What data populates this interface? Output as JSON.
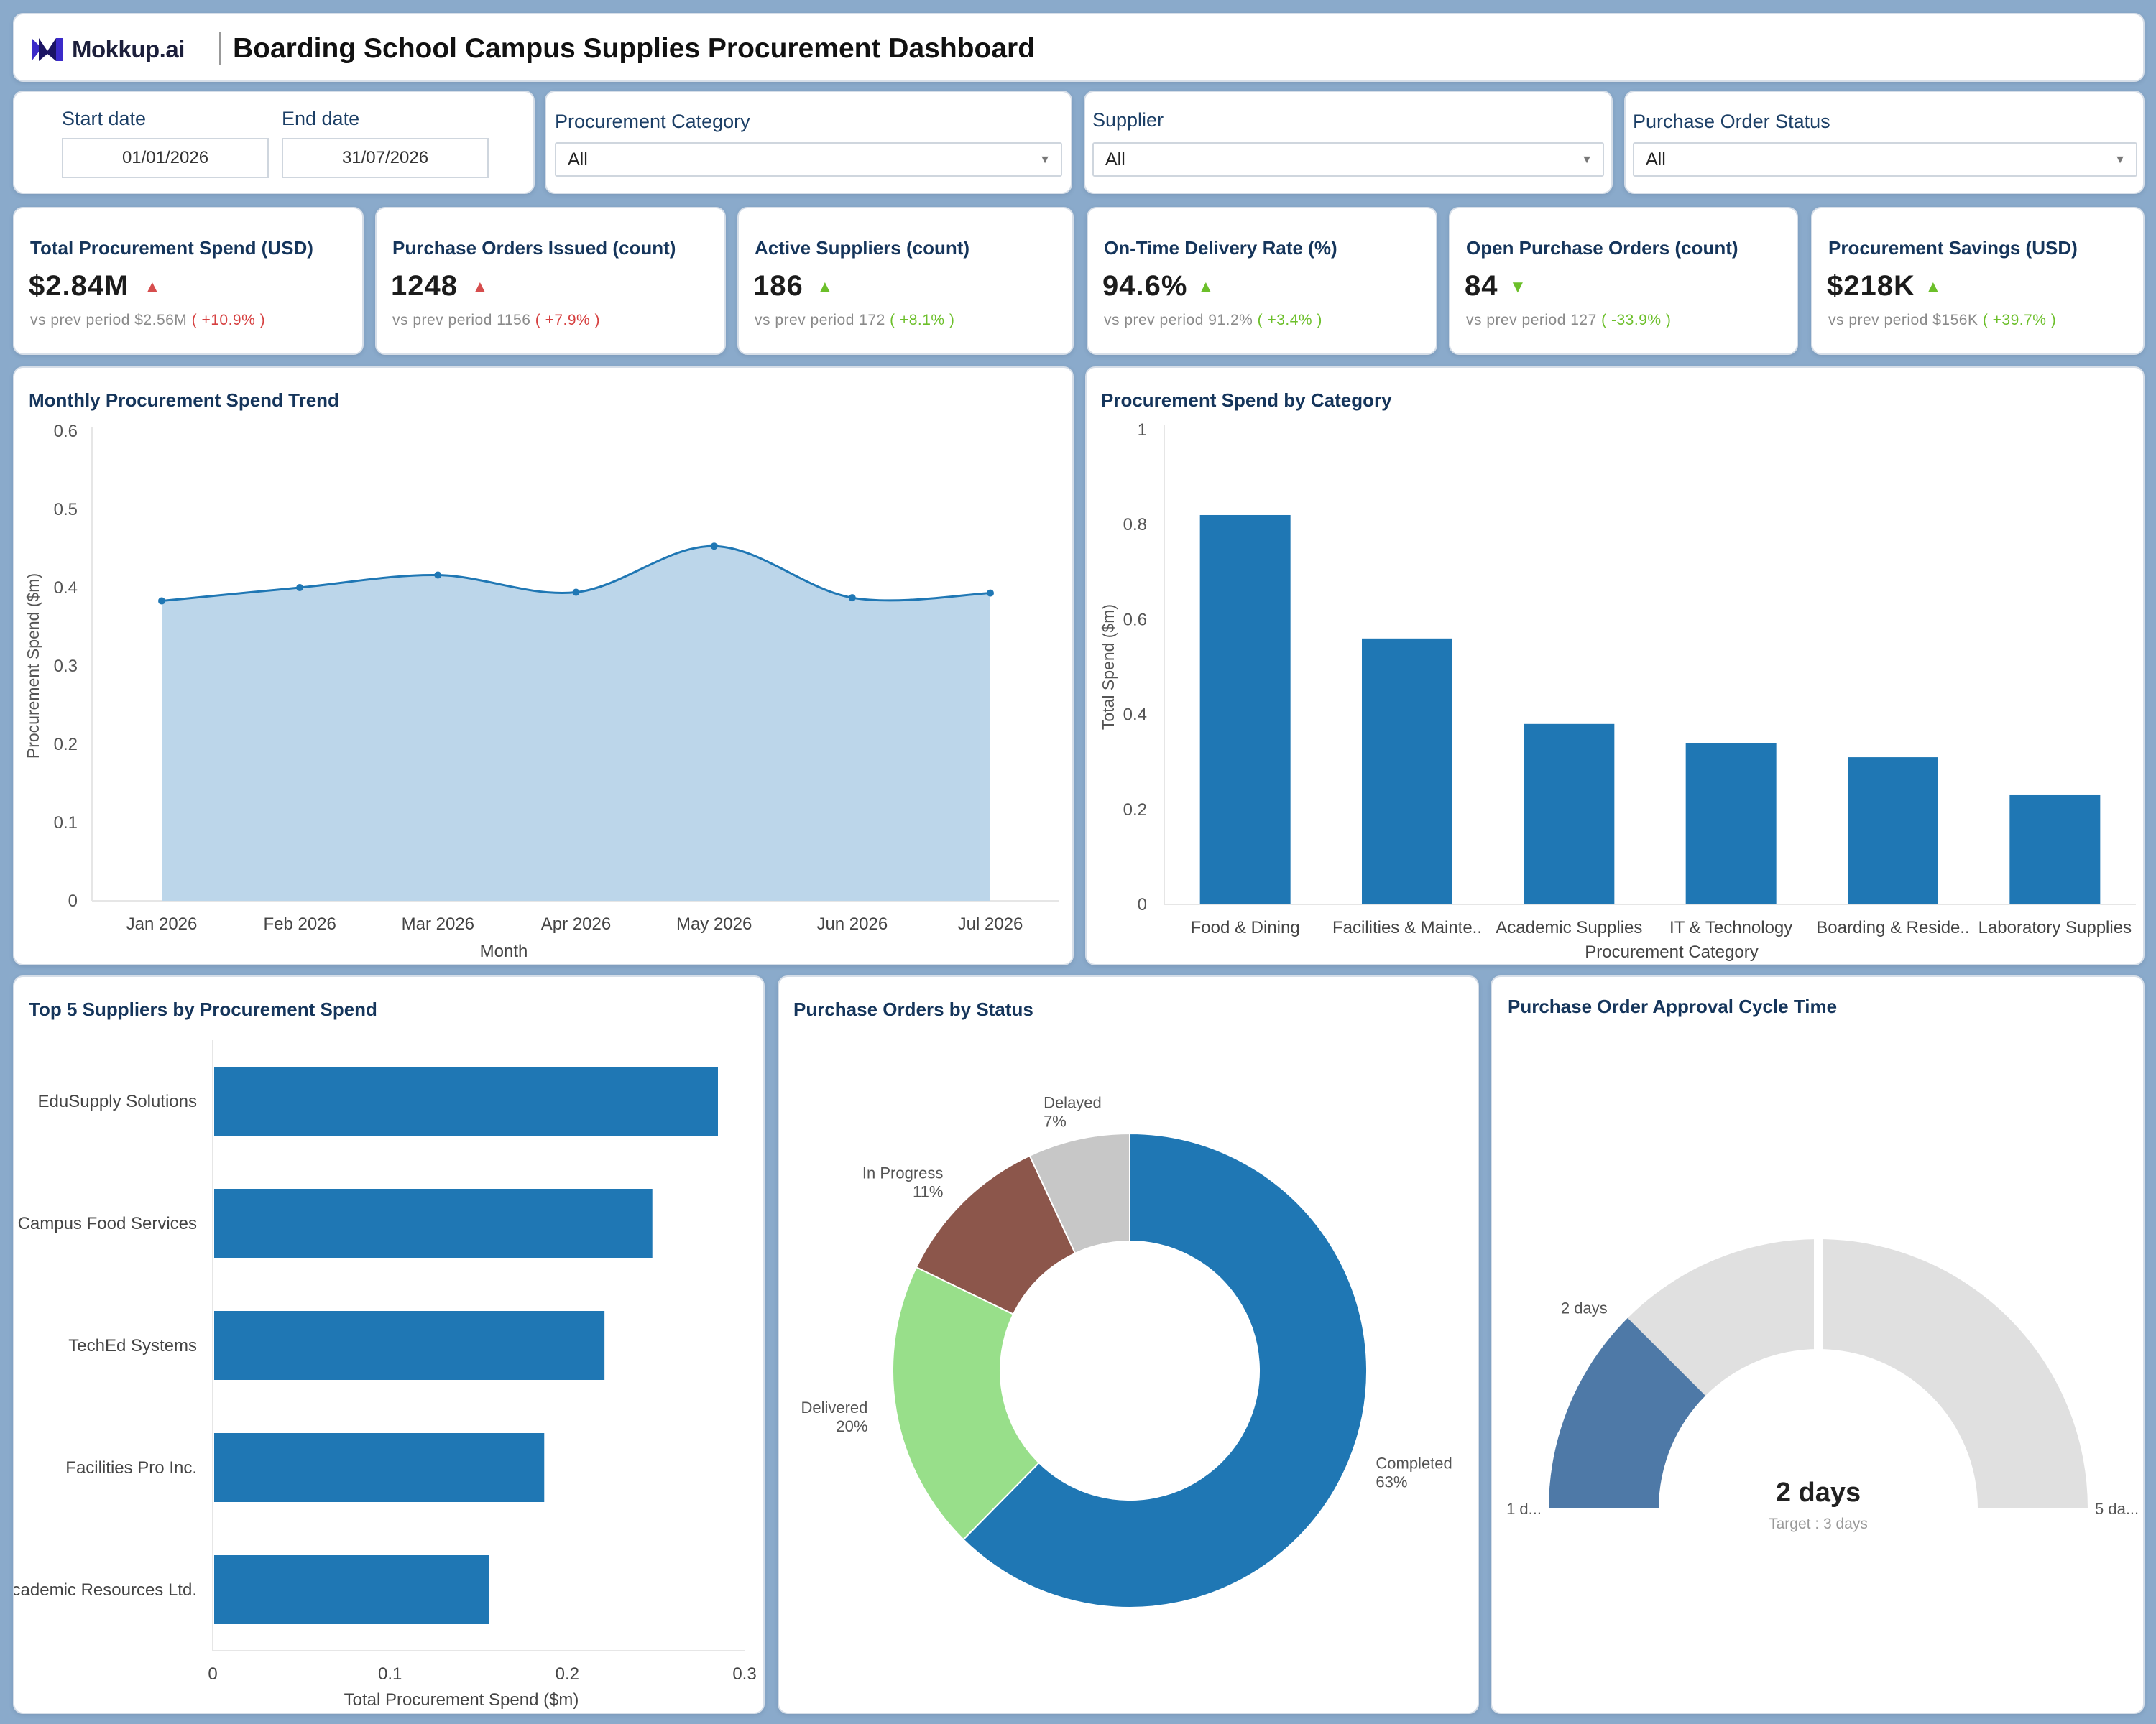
{
  "header": {
    "logo_text": "Mokkup.ai",
    "title": "Boarding School Campus Supplies Procurement Dashboard"
  },
  "filters": {
    "start_date_label": "Start date",
    "start_date_value": "01/01/2026",
    "end_date_label": "End date",
    "end_date_value": "31/07/2026",
    "category_label": "Procurement Category",
    "category_value": "All",
    "supplier_label": "Supplier",
    "supplier_value": "All",
    "status_label": "Purchase Order Status",
    "status_value": "All"
  },
  "kpis": [
    {
      "title": "Total Procurement Spend (USD)",
      "value": "$2.84M",
      "trend": "up",
      "trend_color": "#d64d4d",
      "prev_label": "vs prev period",
      "prev_value": "$2.56M",
      "change": "( +10.9% )",
      "change_color": "red"
    },
    {
      "title": "Purchase Orders Issued (count)",
      "value": "1248",
      "trend": "up",
      "trend_color": "#d64d4d",
      "prev_label": "vs prev period",
      "prev_value": "1156",
      "change": "( +7.9% )",
      "change_color": "red"
    },
    {
      "title": "Active Suppliers (count)",
      "value": "186",
      "trend": "up",
      "trend_color": "#6cbf2a",
      "prev_label": "vs prev period",
      "prev_value": "172",
      "change": "( +8.1% )",
      "change_color": "green"
    },
    {
      "title": "On-Time Delivery Rate (%)",
      "value": "94.6%",
      "trend": "up",
      "trend_color": "#6cbf2a",
      "prev_label": "vs prev period",
      "prev_value": "91.2%",
      "change": "( +3.4% )",
      "change_color": "green"
    },
    {
      "title": "Open Purchase Orders (count)",
      "value": "84",
      "trend": "down",
      "trend_color": "#6cbf2a",
      "prev_label": "vs prev period",
      "prev_value": "127",
      "change": "( -33.9% )",
      "change_color": "green"
    },
    {
      "title": "Procurement Savings (USD)",
      "value": "$218K",
      "trend": "up",
      "trend_color": "#6cbf2a",
      "prev_label": "vs prev period",
      "prev_value": "$156K",
      "change": "( +39.7% )",
      "change_color": "green"
    }
  ],
  "chart_data": [
    {
      "type": "area",
      "title": "Monthly Procurement Spend Trend",
      "xlabel": "Month",
      "ylabel": "Procurement Spend ($m)",
      "x": [
        "Jan 2026",
        "Feb 2026",
        "Mar 2026",
        "Apr 2026",
        "May 2026",
        "Jun 2026",
        "Jul 2026"
      ],
      "values": [
        0.383,
        0.4,
        0.416,
        0.394,
        0.453,
        0.387,
        0.393
      ],
      "ylim": [
        0,
        0.6
      ],
      "yticks": [
        "0",
        "0.1",
        "0.2",
        "0.3",
        "0.4",
        "0.5",
        "0.6"
      ],
      "color": "#1f77b4",
      "fill": "#bcd6ea"
    },
    {
      "type": "bar",
      "title": "Procurement Spend by Category",
      "xlabel": "Procurement Category",
      "ylabel": "Total Spend ($m)",
      "categories": [
        "Food & Dining",
        "Facilities & Mainte..",
        "Academic Supplies",
        "IT & Technology",
        "Boarding & Reside..",
        "Laboratory Supplies"
      ],
      "values": [
        0.82,
        0.56,
        0.38,
        0.34,
        0.31,
        0.23
      ],
      "ylim": [
        0,
        1
      ],
      "yticks": [
        "0",
        "0.2",
        "0.4",
        "0.6",
        "0.8",
        "1"
      ],
      "color": "#1f77b4"
    },
    {
      "type": "bar",
      "orientation": "horizontal",
      "title": "Top 5 Suppliers by Procurement Spend",
      "xlabel": "Total Procurement Spend ($m)",
      "categories": [
        "EduSupply Solutions",
        "Campus Food Services",
        "TechEd Systems",
        "Facilities Pro Inc.",
        "Academic Resources Ltd."
      ],
      "values": [
        0.285,
        0.248,
        0.221,
        0.187,
        0.156
      ],
      "xlim": [
        0,
        0.3
      ],
      "xticks": [
        "0",
        "0.1",
        "0.2",
        "0.3"
      ],
      "color": "#1f77b4"
    },
    {
      "type": "pie",
      "title": "Purchase Orders by Status",
      "donut": true,
      "slices": [
        {
          "label": "Completed",
          "pct_label": "63%",
          "value": 63,
          "color": "#1f77b4"
        },
        {
          "label": "Delivered",
          "pct_label": "20%",
          "value": 20,
          "color": "#98df8a"
        },
        {
          "label": "In Progress",
          "pct_label": "11%",
          "value": 11,
          "color": "#8c564b"
        },
        {
          "label": "Delayed",
          "pct_label": "7%",
          "value": 7,
          "color": "#c7c7c7"
        }
      ]
    },
    {
      "type": "gauge",
      "title": "Purchase Order Approval Cycle Time",
      "value": 2,
      "min": 1,
      "max": 5,
      "target": 3,
      "value_label": "2 days",
      "target_label": "Target : 3 days",
      "min_label": "1 d...",
      "max_label": "5 da...",
      "marker_label": "2 days",
      "fill_color": "#4e79a7",
      "track_color": "#e0e0e0"
    }
  ]
}
